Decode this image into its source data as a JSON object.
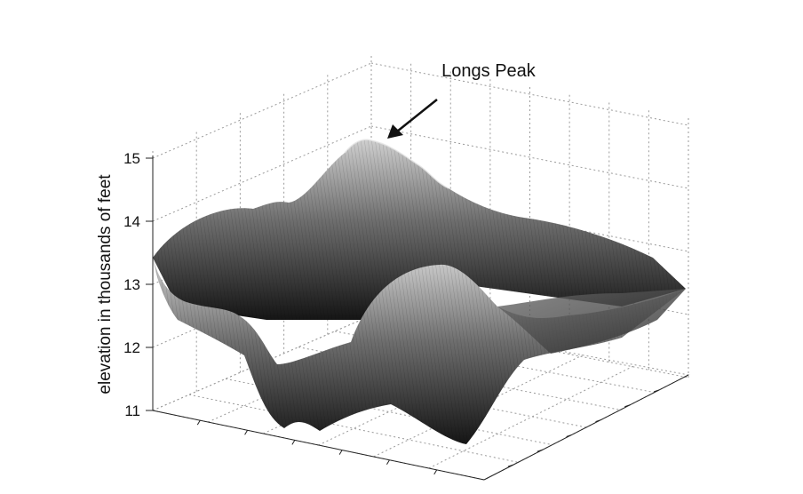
{
  "chart_data": {
    "type": "surface",
    "title": "",
    "zlabel": "elevation in thousands of feet",
    "xlabel": "",
    "ylabel": "",
    "zlim": [
      11,
      15
    ],
    "zticks": [
      11,
      12,
      13,
      14,
      15
    ],
    "grid": true,
    "shading": "grayscale mesh",
    "annotation": {
      "text": "Longs Peak",
      "points_to_elevation": 14.6
    },
    "colors": {
      "background": "#ffffff",
      "surface_dark": "#151515",
      "surface_light": "#cfcfcf",
      "grid": "#9a9a9a"
    }
  }
}
